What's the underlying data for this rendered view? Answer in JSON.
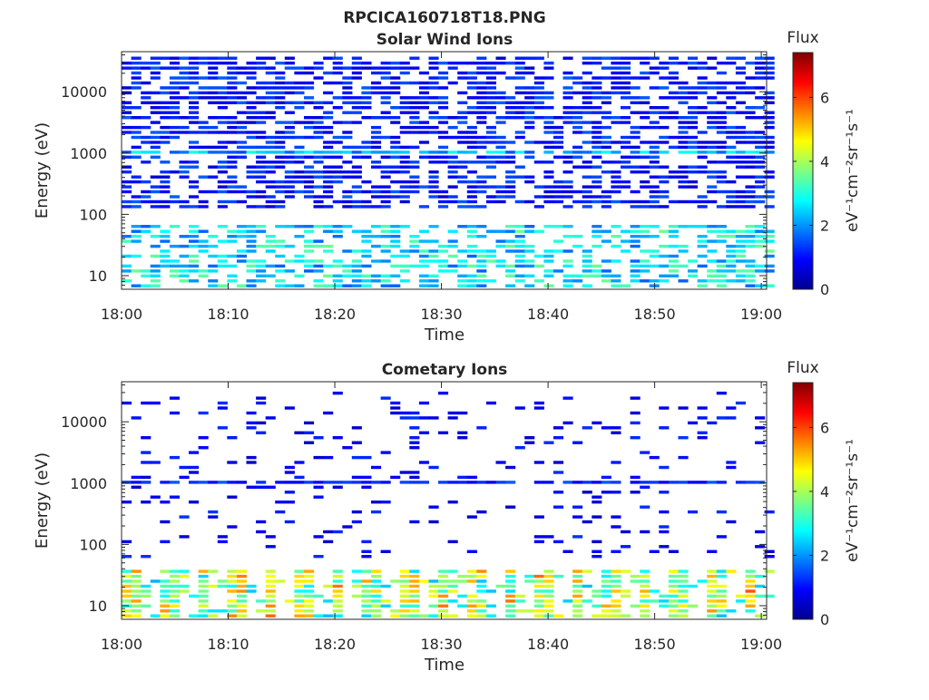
{
  "figure": {
    "filename": "RPCICA160718T18.PNG"
  },
  "chart_data": [
    {
      "type": "heatmap",
      "title": "Solar Wind Ions",
      "xlabel": "Time",
      "ylabel": "Energy (eV)",
      "x_tick_labels": [
        "18:00",
        "18:10",
        "18:20",
        "18:30",
        "18:40",
        "18:50",
        "19:00"
      ],
      "x_range_minutes": [
        0,
        60.5
      ],
      "y_scale": "log",
      "y_range_eV": [
        6,
        45000
      ],
      "y_tick_values": [
        10,
        100,
        1000,
        10000
      ],
      "y_tick_labels": [
        "10",
        "100",
        "1000",
        "10000"
      ],
      "colorbar": {
        "label": "Flux",
        "unit": "eV⁻¹cm⁻²sr⁻¹s⁻¹",
        "range": [
          0,
          7.4
        ],
        "tick_labels": [
          "0",
          "2",
          "4",
          "6"
        ],
        "colormap": "jet"
      },
      "pattern": {
        "high_band_energy_eV": [
          120,
          40000
        ],
        "high_band_flux": [
          0.6,
          1.6
        ],
        "high_band_occupancy": 0.6,
        "line_energy_eV": 1050,
        "line_flux": [
          1.4,
          3.0
        ],
        "low_band_energy_eV": [
          6,
          70
        ],
        "low_band_flux": [
          1.6,
          3.6
        ],
        "low_band_occupancy": 0.55,
        "time_step_minutes": 0.9
      }
    },
    {
      "type": "heatmap",
      "title": "Cometary Ions",
      "xlabel": "Time",
      "ylabel": "Energy (eV)",
      "x_tick_labels": [
        "18:00",
        "18:10",
        "18:20",
        "18:30",
        "18:40",
        "18:50",
        "19:00"
      ],
      "x_range_minutes": [
        0,
        60.5
      ],
      "y_scale": "log",
      "y_range_eV": [
        6,
        45000
      ],
      "y_tick_values": [
        10,
        100,
        1000,
        10000
      ],
      "y_tick_labels": [
        "10",
        "100",
        "1000",
        "10000"
      ],
      "colorbar": {
        "label": "Flux",
        "unit": "eV⁻¹cm⁻²sr⁻¹s⁻¹",
        "range": [
          0,
          7.4
        ],
        "tick_labels": [
          "0",
          "2",
          "4",
          "6"
        ],
        "colormap": "jet"
      },
      "pattern": {
        "high_band_energy_eV": [
          60,
          30000
        ],
        "high_band_flux": [
          0.5,
          1.3
        ],
        "high_band_occupancy": 0.12,
        "line_energy_eV": 1050,
        "line_flux": [
          0.8,
          1.6
        ],
        "low_band_energy_eV": [
          6,
          40
        ],
        "low_band_flux": [
          2.2,
          4.8
        ],
        "low_band_occupancy": 0.7,
        "burst_period_minutes": 3.2,
        "time_step_minutes": 0.9
      }
    }
  ]
}
